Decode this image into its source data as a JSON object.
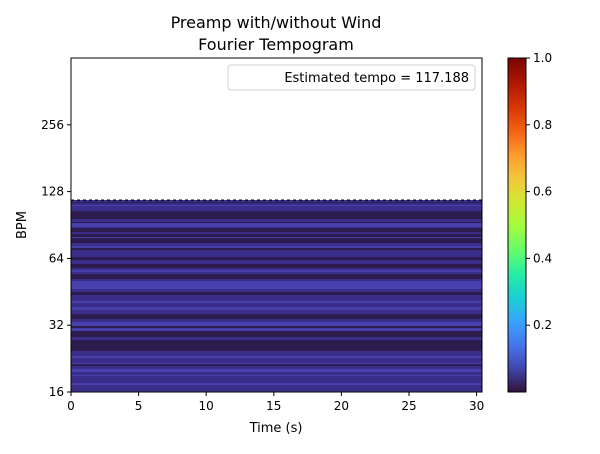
{
  "chart_data": {
    "type": "heatmap",
    "title_lines": [
      "Preamp with/without Wind",
      "Fourier Tempogram"
    ],
    "xlabel": "Time (s)",
    "ylabel": "BPM",
    "xlim": [
      0,
      30.4
    ],
    "ylim": [
      16,
      512
    ],
    "yscale": "log2",
    "xticks": [
      0,
      5,
      10,
      15,
      20,
      25,
      30
    ],
    "yticks": [
      16,
      32,
      64,
      128,
      256
    ],
    "data_max_bpm": 117.188,
    "estimated_tempo": 117.188,
    "legend_text": "Estimated tempo = 117.188",
    "legend_placement": "upper-right",
    "colormap": "turbo",
    "colorbar": {
      "min": 0,
      "max": 1.0,
      "ticks": [
        0.2,
        0.4,
        0.6,
        0.8,
        1.0
      ],
      "tick_labels": [
        "0.2",
        "0.4",
        "0.6",
        "0.8",
        "1.0"
      ]
    },
    "dominant_colors": [
      "#2b1a45",
      "#3b2f8a",
      "#4a44b0"
    ]
  }
}
